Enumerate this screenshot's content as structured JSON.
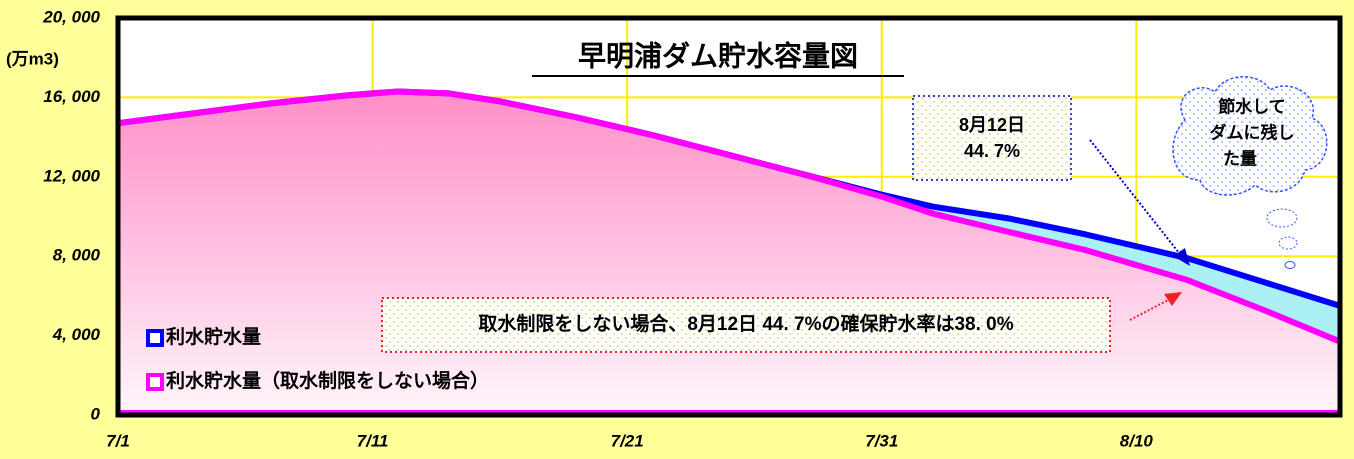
{
  "chart_data": {
    "type": "line",
    "title": "早明浦ダム貯水容量図",
    "y_label": "(万m3)",
    "x": [
      0,
      3,
      6,
      9,
      11,
      13,
      15,
      18,
      21,
      24,
      27,
      30,
      32,
      35,
      38,
      42,
      45,
      48
    ],
    "xlim": [
      0,
      48
    ],
    "xticks": [
      {
        "value": 0,
        "label": "7/1"
      },
      {
        "value": 10,
        "label": "7/11"
      },
      {
        "value": 20,
        "label": "7/21"
      },
      {
        "value": 30,
        "label": "7/31"
      },
      {
        "value": 40,
        "label": "8/10"
      }
    ],
    "ylim": [
      0,
      20000
    ],
    "yticks": [
      0,
      {
        "value": 4000,
        "label": "4, 000"
      },
      {
        "value": 8000,
        "label": "8, 000"
      },
      {
        "value": 12000,
        "label": "12, 000"
      },
      {
        "value": 16000,
        "label": "16, 000"
      },
      {
        "value": 20000,
        "label": "20, 000"
      }
    ],
    "grid": true,
    "series": [
      {
        "name": "利水貯水量",
        "color": "#0000ff",
        "values": [
          14700,
          15200,
          15700,
          16100,
          16300,
          16200,
          15800,
          15000,
          14100,
          13100,
          12100,
          11100,
          10500,
          9900,
          9100,
          7900,
          6700,
          5500
        ]
      },
      {
        "name": "利水貯水量（取水制限をしない場合）",
        "color": "#ff00ff",
        "values": [
          14700,
          15200,
          15700,
          16100,
          16300,
          16200,
          15800,
          15000,
          14100,
          13100,
          12100,
          11000,
          10150,
          9220,
          8310,
          6800,
          5290,
          3700
        ]
      }
    ],
    "annotations": [
      [
        "8月12日",
        "44. 7%"
      ],
      [
        "節水して",
        "ダムに残し",
        "た量"
      ],
      [
        "取水制限をしない場合、8月12日 44. 7%の確保貯水率は38. 0%"
      ]
    ]
  }
}
